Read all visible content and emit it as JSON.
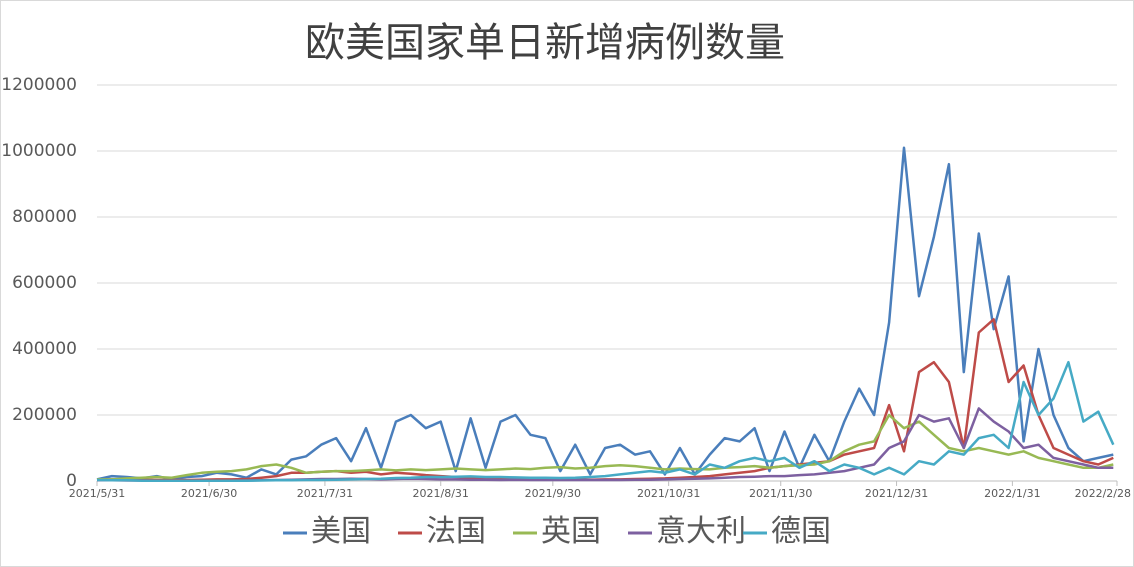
{
  "chart_data": {
    "type": "line",
    "title": "欧美国家单日新增病例数量",
    "x": [
      "2021/5/31",
      "2021/6/4",
      "2021/6/8",
      "2021/6/12",
      "2021/6/16",
      "2021/6/20",
      "2021/6/24",
      "2021/6/28",
      "2021/7/2",
      "2021/7/6",
      "2021/7/10",
      "2021/7/14",
      "2021/7/18",
      "2021/7/22",
      "2021/7/26",
      "2021/7/30",
      "2021/8/3",
      "2021/8/7",
      "2021/8/11",
      "2021/8/15",
      "2021/8/19",
      "2021/8/23",
      "2021/8/27",
      "2021/8/31",
      "2021/9/4",
      "2021/9/8",
      "2021/9/12",
      "2021/9/16",
      "2021/9/20",
      "2021/9/24",
      "2021/9/28",
      "2021/10/2",
      "2021/10/6",
      "2021/10/10",
      "2021/10/14",
      "2021/10/18",
      "2021/10/22",
      "2021/10/26",
      "2021/10/30",
      "2021/11/3",
      "2021/11/7",
      "2021/11/11",
      "2021/11/15",
      "2021/11/19",
      "2021/11/23",
      "2021/11/27",
      "2021/12/1",
      "2021/12/5",
      "2021/12/9",
      "2021/12/13",
      "2021/12/17",
      "2021/12/21",
      "2021/12/25",
      "2021/12/29",
      "2022/1/2",
      "2022/1/6",
      "2022/1/10",
      "2022/1/14",
      "2022/1/18",
      "2022/1/22",
      "2022/1/26",
      "2022/1/30",
      "2022/2/3",
      "2022/2/7",
      "2022/2/11",
      "2022/2/15",
      "2022/2/19",
      "2022/2/23",
      "2022/2/27"
    ],
    "series": [
      {
        "name": "美国",
        "color": "#4a7ebb",
        "values": [
          5000,
          15000,
          12000,
          8000,
          15000,
          5000,
          12000,
          15000,
          25000,
          20000,
          10000,
          35000,
          20000,
          65000,
          75000,
          110000,
          130000,
          60000,
          160000,
          40000,
          180000,
          200000,
          160000,
          180000,
          30000,
          190000,
          40000,
          180000,
          200000,
          140000,
          130000,
          30000,
          110000,
          20000,
          100000,
          110000,
          80000,
          90000,
          20000,
          100000,
          20000,
          80000,
          130000,
          120000,
          160000,
          30000,
          150000,
          40000,
          140000,
          60000,
          180000,
          280000,
          200000,
          480000,
          1010000,
          560000,
          740000,
          960000,
          330000,
          750000,
          460000,
          620000,
          120000,
          400000,
          200000,
          100000,
          60000,
          70000,
          80000
        ]
      },
      {
        "name": "法国",
        "color": "#be4b48",
        "values": [
          3000,
          5000,
          5000,
          4000,
          3000,
          3000,
          3000,
          4000,
          5000,
          5000,
          6000,
          10000,
          15000,
          25000,
          25000,
          28000,
          30000,
          25000,
          28000,
          20000,
          25000,
          22000,
          18000,
          15000,
          12000,
          10000,
          9000,
          8000,
          7000,
          6000,
          5000,
          5000,
          4000,
          4000,
          5000,
          5000,
          6000,
          7000,
          8000,
          10000,
          12000,
          15000,
          20000,
          25000,
          30000,
          40000,
          45000,
          50000,
          55000,
          60000,
          80000,
          90000,
          100000,
          230000,
          90000,
          330000,
          360000,
          300000,
          100000,
          450000,
          490000,
          300000,
          350000,
          200000,
          100000,
          80000,
          60000,
          50000,
          70000
        ]
      },
      {
        "name": "英国",
        "color": "#98b954",
        "values": [
          5000,
          5000,
          8000,
          10000,
          12000,
          10000,
          18000,
          25000,
          28000,
          30000,
          35000,
          45000,
          50000,
          40000,
          25000,
          28000,
          30000,
          30000,
          32000,
          35000,
          32000,
          35000,
          33000,
          35000,
          38000,
          35000,
          33000,
          35000,
          38000,
          36000,
          40000,
          42000,
          38000,
          40000,
          45000,
          48000,
          45000,
          40000,
          35000,
          38000,
          36000,
          35000,
          40000,
          42000,
          45000,
          40000,
          45000,
          48000,
          50000,
          60000,
          90000,
          110000,
          120000,
          200000,
          160000,
          180000,
          140000,
          100000,
          90000,
          100000,
          90000,
          80000,
          90000,
          70000,
          60000,
          50000,
          40000,
          40000,
          50000
        ]
      },
      {
        "name": "意大利",
        "color": "#7d60a0",
        "values": [
          2000,
          2000,
          1500,
          1500,
          1000,
          1000,
          1000,
          1000,
          1000,
          1000,
          1500,
          2000,
          3000,
          4000,
          5000,
          6000,
          6000,
          7000,
          6000,
          5000,
          6000,
          7000,
          6000,
          5000,
          5000,
          4000,
          4000,
          3000,
          4000,
          3000,
          3000,
          3000,
          3000,
          3000,
          3000,
          3000,
          3500,
          4000,
          5000,
          6000,
          7000,
          8000,
          10000,
          12000,
          13000,
          15000,
          15000,
          18000,
          20000,
          25000,
          30000,
          40000,
          50000,
          100000,
          120000,
          200000,
          180000,
          190000,
          100000,
          220000,
          180000,
          150000,
          100000,
          110000,
          70000,
          60000,
          50000,
          40000,
          40000
        ]
      },
      {
        "name": "德国",
        "color": "#46aac5",
        "values": [
          3000,
          2000,
          2000,
          1000,
          1000,
          1000,
          700,
          700,
          800,
          800,
          1000,
          1500,
          2000,
          2500,
          3000,
          3000,
          4000,
          5000,
          6000,
          7000,
          9000,
          10000,
          12000,
          12000,
          13000,
          14000,
          12000,
          12000,
          11000,
          10000,
          10000,
          9000,
          10000,
          12000,
          15000,
          20000,
          25000,
          30000,
          25000,
          35000,
          20000,
          50000,
          40000,
          60000,
          70000,
          60000,
          70000,
          40000,
          60000,
          30000,
          50000,
          40000,
          20000,
          40000,
          20000,
          60000,
          50000,
          90000,
          80000,
          130000,
          140000,
          100000,
          300000,
          200000,
          250000,
          360000,
          180000,
          210000,
          110000
        ]
      }
    ],
    "xlim": [
      "2021/5/31",
      "2022/2/28"
    ],
    "xticks": [
      "2021/5/31",
      "2021/6/30",
      "2021/7/31",
      "2021/8/31",
      "2021/9/30",
      "2021/10/31",
      "2021/11/30",
      "2021/12/31",
      "2022/1/31",
      "2022/2/28"
    ],
    "ylim": [
      0,
      1200000
    ],
    "yticks": [
      0,
      200000,
      400000,
      600000,
      800000,
      1000000,
      1200000
    ],
    "grid": true,
    "legend": "bottom"
  }
}
